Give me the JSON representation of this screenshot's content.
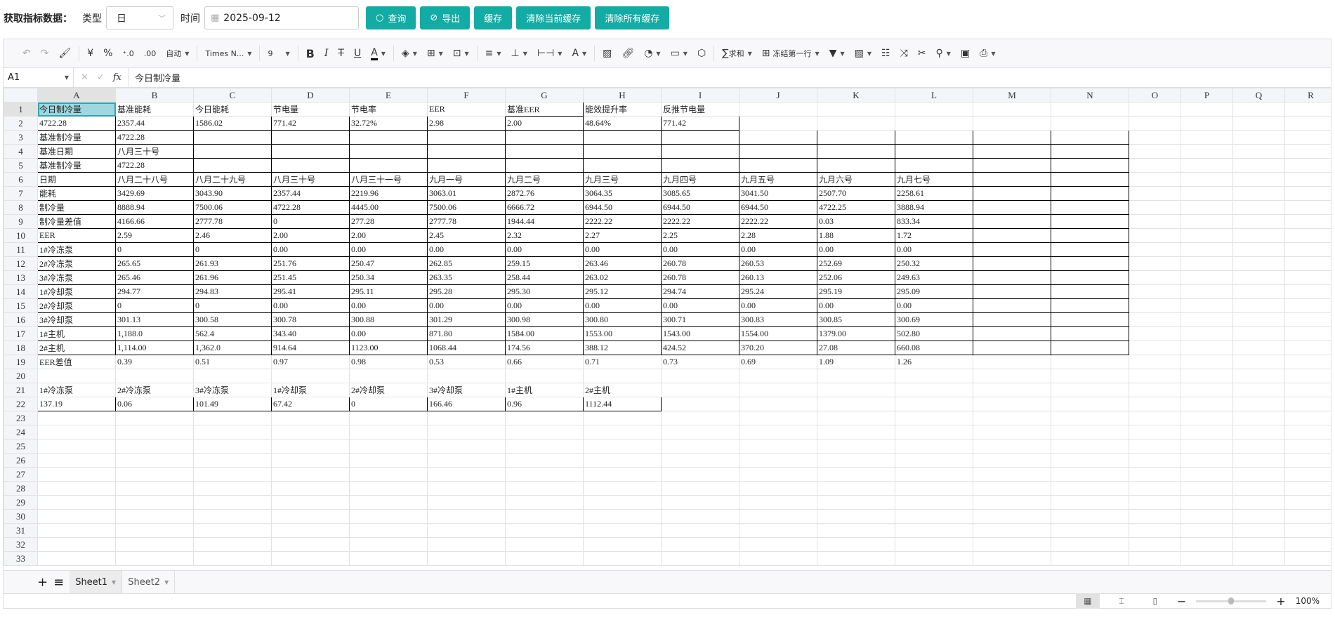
{
  "header": {
    "title": "获取指标数据：",
    "type_label": "类型",
    "type_value": "日",
    "time_label": "时间",
    "date_value": "2025-09-12",
    "buttons": [
      {
        "label": "查询",
        "icon": "search-icon"
      },
      {
        "label": "导出",
        "icon": "paperclip-icon"
      },
      {
        "label": "缓存"
      },
      {
        "label": "清除当前缓存"
      },
      {
        "label": "清除所有缓存"
      }
    ],
    "accent": "#13aca4"
  },
  "toolbar": {
    "number_format": "自动",
    "font": "Times N...",
    "font_size": "9",
    "sum": "求和",
    "freeze": "冻结第一行"
  },
  "formula_bar": {
    "cell": "A1",
    "fx": "fx",
    "value": "今日制冷量"
  },
  "sheet": {
    "columns": [
      "A",
      "B",
      "C",
      "D",
      "E",
      "F",
      "G",
      "H",
      "I",
      "J",
      "K",
      "L",
      "M",
      "N",
      "O",
      "P",
      "Q",
      "R"
    ],
    "selected_cell": "A1",
    "rows": [
      [
        "今日制冷量",
        "基准能耗",
        "今日能耗",
        "节电量",
        "节电率",
        "EER",
        "基准EER",
        "能效提升率",
        "反推节电量",
        "",
        "",
        ""
      ],
      [
        "4722.28",
        "2357.44",
        "1586.02",
        "771.42",
        "32.72%",
        "2.98",
        "2.00",
        "48.64%",
        "771.42",
        "",
        "",
        ""
      ],
      [
        "基准制冷量",
        "4722.28",
        "",
        "",
        "",
        "",
        "",
        "",
        "",
        "",
        "",
        ""
      ],
      [
        "基准日期",
        "八月三十号",
        "",
        "",
        "",
        "",
        "",
        "",
        "",
        "",
        "",
        ""
      ],
      [
        "基准制冷量",
        "4722.28",
        "",
        "",
        "",
        "",
        "",
        "",
        "",
        "",
        "",
        ""
      ],
      [
        "日期",
        "八月二十八号",
        "八月二十九号",
        "八月三十号",
        "八月三十一号",
        "九月一号",
        "九月二号",
        "九月三号",
        "九月四号",
        "九月五号",
        "九月六号",
        "九月七号"
      ],
      [
        "能耗",
        "3429.69",
        "3043.90",
        "2357.44",
        "2219.96",
        "3063.01",
        "2872.76",
        "3064.35",
        "3085.65",
        "3041.50",
        "2507.70",
        "2258.61"
      ],
      [
        "制冷量",
        "8888.94",
        "7500.06",
        "4722.28",
        "4445.00",
        "7500.06",
        "6666.72",
        "6944.50",
        "6944.50",
        "6944.50",
        "4722.25",
        "3888.94"
      ],
      [
        "制冷量差值",
        "4166.66",
        "2777.78",
        "0",
        "277.28",
        "2777.78",
        "1944.44",
        "2222.22",
        "2222.22",
        "2222.22",
        "0.03",
        "833.34"
      ],
      [
        "EER",
        "2.59",
        "2.46",
        "2.00",
        "2.00",
        "2.45",
        "2.32",
        "2.27",
        "2.25",
        "2.28",
        "1.88",
        "1.72"
      ],
      [
        "1#冷冻泵",
        "0",
        "0",
        "0.00",
        "0.00",
        "0.00",
        "0.00",
        "0.00",
        "0.00",
        "0.00",
        "0.00",
        "0.00"
      ],
      [
        "2#冷冻泵",
        "265.65",
        "261.93",
        "251.76",
        "250.47",
        "262.85",
        "259.15",
        "263.46",
        "260.78",
        "260.53",
        "252.69",
        "250.32"
      ],
      [
        "3#冷冻泵",
        "265.46",
        "261.96",
        "251.45",
        "250.34",
        "263.35",
        "258.44",
        "263.02",
        "260.78",
        "260.13",
        "252.06",
        "249.63"
      ],
      [
        "1#冷却泵",
        "294.77",
        "294.83",
        "295.41",
        "295.11",
        "295.28",
        "295.30",
        "295.12",
        "294.74",
        "295.24",
        "295.19",
        "295.09"
      ],
      [
        "2#冷却泵",
        "0",
        "0",
        "0.00",
        "0.00",
        "0.00",
        "0.00",
        "0.00",
        "0.00",
        "0.00",
        "0.00",
        "0.00"
      ],
      [
        "3#冷却泵",
        "301.13",
        "300.58",
        "300.78",
        "300.88",
        "301.29",
        "300.98",
        "300.80",
        "300.71",
        "300.83",
        "300.85",
        "300.69"
      ],
      [
        "1#主机",
        "1,188.0",
        "562.4",
        "343.40",
        "0.00",
        "871.80",
        "1584.00",
        "1553.00",
        "1543.00",
        "1554.00",
        "1379.00",
        "502.80"
      ],
      [
        "2#主机",
        "1,114.00",
        "1,362.0",
        "914.64",
        "1123.00",
        "1068.44",
        "174.56",
        "388.12",
        "424.52",
        "370.20",
        "27.08",
        "660.08"
      ],
      [
        "EER差值",
        "0.39",
        "0.51",
        "0.97",
        "0.98",
        "0.53",
        "0.66",
        "0.71",
        "0.73",
        "0.69",
        "1.09",
        "1.26"
      ],
      [
        "",
        "",
        "",
        "",
        "",
        "",
        "",
        "",
        "",
        "",
        "",
        ""
      ],
      [
        "1#冷冻泵",
        "2#冷冻泵",
        "3#冷冻泵",
        "1#冷却泵",
        "2#冷却泵",
        "3#冷却泵",
        "1#主机",
        "2#主机",
        "",
        "",
        "",
        ""
      ],
      [
        "137.19",
        "0.06",
        "101.49",
        "67.42",
        "0",
        "166.46",
        "0.96",
        "1112.44",
        "",
        "",
        "",
        ""
      ]
    ],
    "total_rows": 33
  },
  "sheet_tabs": [
    {
      "label": "Sheet1",
      "active": true
    },
    {
      "label": "Sheet2",
      "active": false
    }
  ],
  "status_bar": {
    "zoom": "100%",
    "zoom_level": 1.0
  }
}
